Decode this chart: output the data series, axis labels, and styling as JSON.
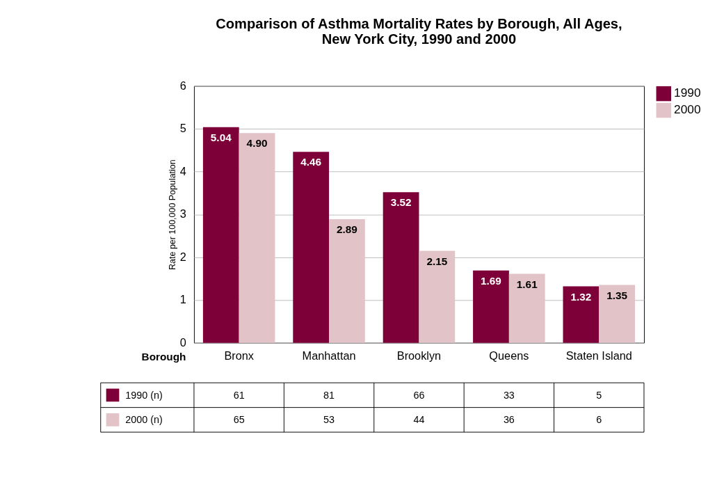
{
  "chart_data": {
    "type": "bar",
    "title": "Comparison of Asthma Mortality Rates by Borough, All Ages,\nNew York City, 1990 and 2000",
    "xlabel": "Borough",
    "ylabel": "Rate per 100,000 Population",
    "categories": [
      "Bronx",
      "Manhattan",
      "Brooklyn",
      "Queens",
      "Staten Island"
    ],
    "series": [
      {
        "name": "1990",
        "color": "#7d0039",
        "values": [
          5.04,
          4.46,
          3.52,
          1.69,
          1.32
        ],
        "value_labels": [
          "5.04",
          "4.46",
          "3.52",
          "1.69",
          "1.32"
        ]
      },
      {
        "name": "2000",
        "color": "#e2c3c8",
        "values": [
          4.9,
          2.89,
          2.15,
          1.61,
          1.35
        ],
        "value_labels": [
          "4.90",
          "2.89",
          "2.15",
          "1.61",
          "1.35"
        ]
      }
    ],
    "ylim": [
      0,
      6
    ],
    "yticks": [
      0,
      1,
      2,
      3,
      4,
      5,
      6
    ],
    "grid": "y",
    "legend": "right",
    "annotations": [
      "1990 (n)",
      "61",
      "81",
      "66",
      "33",
      "5",
      "2000 (n)",
      "65",
      "53",
      "44",
      "36",
      "6"
    ]
  }
}
